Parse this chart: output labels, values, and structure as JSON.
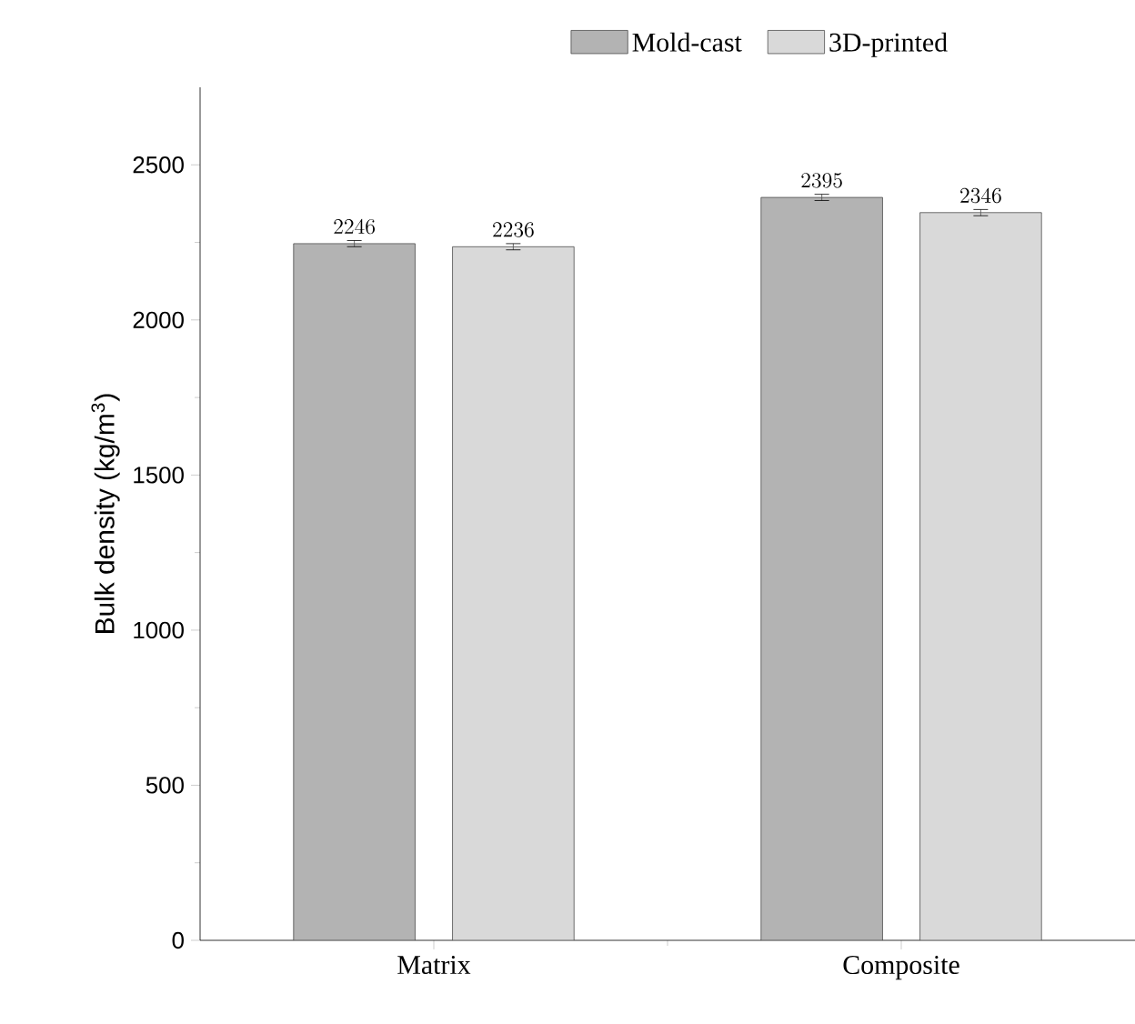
{
  "chart_data": {
    "type": "bar",
    "ylabel": "Bulk density (kg/m$^{3}$)",
    "categories": [
      "Matrix",
      "Composite"
    ],
    "series": [
      {
        "name": "Mold-cast",
        "color": "#b3b3b3",
        "values": [
          2246,
          2395
        ],
        "errors": [
          10,
          10
        ]
      },
      {
        "name": "3D-printed",
        "color": "#d9d9d9",
        "values": [
          2236,
          2346
        ],
        "errors": [
          10,
          10
        ]
      }
    ],
    "ylim": [
      0,
      2750
    ],
    "yticks": [
      0,
      500,
      1000,
      1500,
      2000,
      2500
    ],
    "data_labels": true,
    "legend": "top",
    "grid": false
  }
}
